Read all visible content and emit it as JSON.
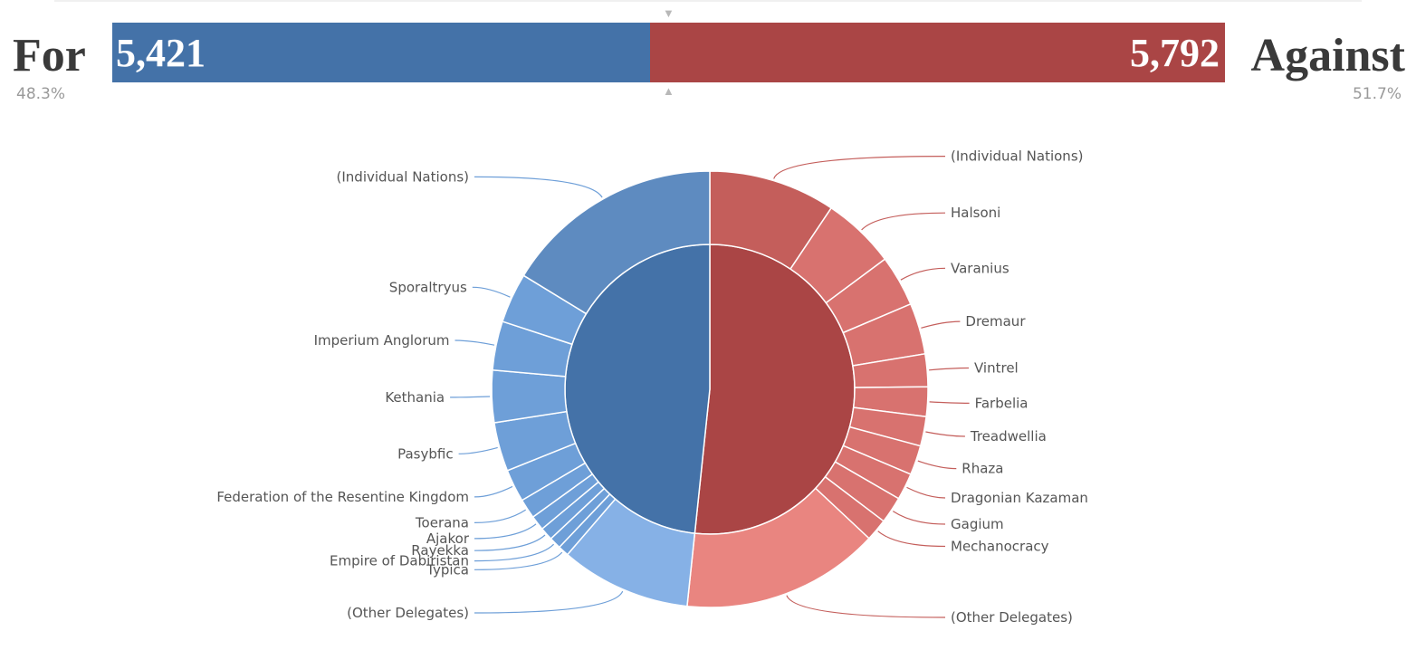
{
  "header": {
    "for_label": "For",
    "for_value": "5,421",
    "for_percent": "48.3%",
    "for_share": 0.483,
    "against_label": "Against",
    "against_value": "5,792",
    "against_percent": "51.7%",
    "against_share": 0.517,
    "marker_top": "▼",
    "marker_bottom": "▲"
  },
  "colors": {
    "for": "#4472a8",
    "against": "#aa4545",
    "text": "#555555",
    "heading": "#3a3a3a"
  },
  "chart_data": {
    "type": "pie",
    "title": "",
    "inner_ring": [
      {
        "name": "For",
        "value": 5421,
        "color": "#4472a8"
      },
      {
        "name": "Against",
        "value": 5792,
        "color": "#aa4545"
      }
    ],
    "outer_ring": [
      {
        "name": "(Individual Nations)",
        "side": "against",
        "value": 645,
        "color": "#c45e5b"
      },
      {
        "name": "Halsoni",
        "side": "against",
        "value": 373,
        "color": "#d8726f"
      },
      {
        "name": "Varanius",
        "side": "against",
        "value": 260,
        "color": "#d8726f"
      },
      {
        "name": "Dremaur",
        "side": "against",
        "value": 260,
        "color": "#d8726f"
      },
      {
        "name": "Vintrel",
        "side": "against",
        "value": 166,
        "color": "#d8726f"
      },
      {
        "name": "Farbelia",
        "side": "against",
        "value": 150,
        "color": "#d8726f"
      },
      {
        "name": "Treadwellia",
        "side": "against",
        "value": 150,
        "color": "#d8726f"
      },
      {
        "name": "Rhaza",
        "side": "against",
        "value": 150,
        "color": "#d8726f"
      },
      {
        "name": "Dragonian Kazaman",
        "side": "against",
        "value": 136,
        "color": "#d8726f"
      },
      {
        "name": "Gagium",
        "side": "against",
        "value": 136,
        "color": "#d8726f"
      },
      {
        "name": "Mechanocracy",
        "side": "against",
        "value": 113,
        "color": "#d8726f"
      },
      {
        "name": "(Other Delegates)",
        "side": "against",
        "value": 1008,
        "color": "#e98580"
      },
      {
        "name": "(Other Delegates)",
        "side": "for",
        "value": 663,
        "color": "#86b1e6"
      },
      {
        "name": "Typica",
        "side": "for",
        "value": 55,
        "color": "#6e9fd8"
      },
      {
        "name": "Empire of Dabiristan",
        "side": "for",
        "value": 60,
        "color": "#6e9fd8"
      },
      {
        "name": "Rayekka",
        "side": "for",
        "value": 66,
        "color": "#6e9fd8"
      },
      {
        "name": "Ajakor",
        "side": "for",
        "value": 75,
        "color": "#6e9fd8"
      },
      {
        "name": "Toerana",
        "side": "for",
        "value": 100,
        "color": "#6e9fd8"
      },
      {
        "name": "Federation of the Resentine Kingdom",
        "side": "for",
        "value": 166,
        "color": "#6e9fd8"
      },
      {
        "name": "Pasybfic",
        "side": "for",
        "value": 249,
        "color": "#6e9fd8"
      },
      {
        "name": "Kethania",
        "side": "for",
        "value": 265,
        "color": "#6e9fd8"
      },
      {
        "name": "Imperium Anglorum",
        "side": "for",
        "value": 249,
        "color": "#6e9fd8"
      },
      {
        "name": "Sporaltryus",
        "side": "for",
        "value": 254,
        "color": "#6e9fd8"
      },
      {
        "name": "(Individual Nations)",
        "side": "for",
        "value": 1117,
        "color": "#5e8bc0"
      }
    ]
  }
}
